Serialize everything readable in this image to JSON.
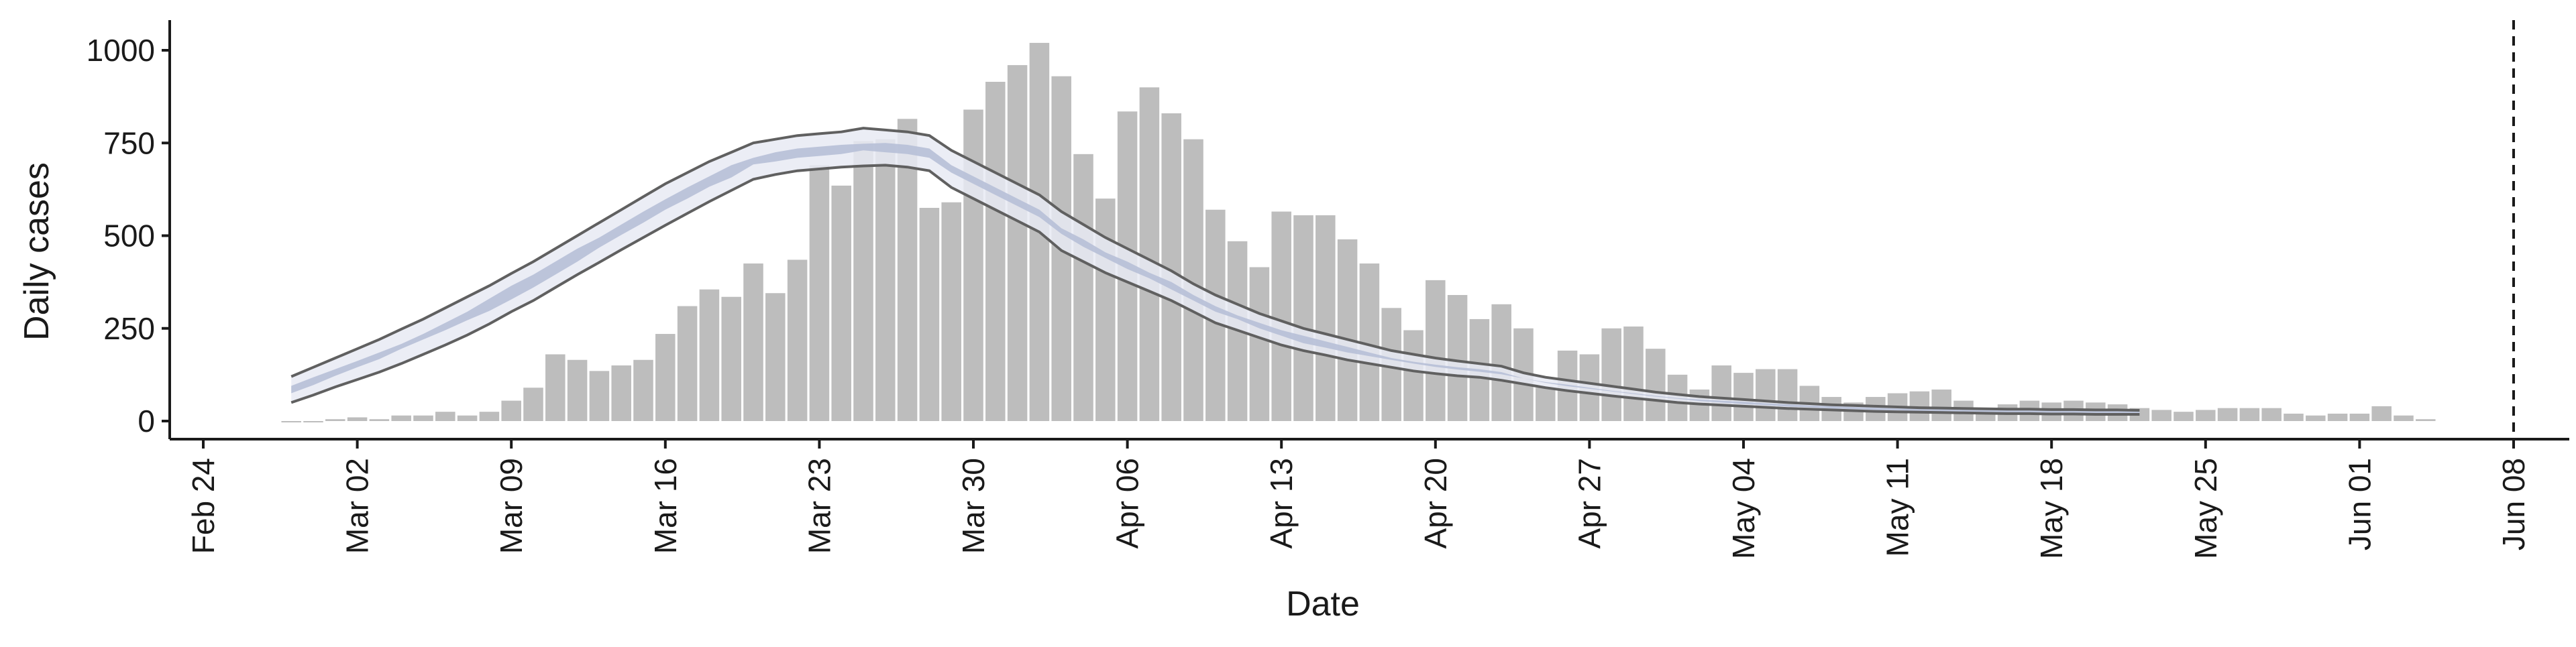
{
  "chart_data": {
    "type": "bar",
    "xlabel": "Date",
    "ylabel": "Daily cases",
    "ylim": [
      -25,
      1080
    ],
    "yticks": [
      0,
      250,
      500,
      750,
      1000
    ],
    "xtick_labels": [
      "Feb 24",
      "Mar 02",
      "Mar 09",
      "Mar 16",
      "Mar 23",
      "Mar 30",
      "Apr 06",
      "Apr 13",
      "Apr 20",
      "Apr 27",
      "May 04",
      "May 11",
      "May 18",
      "May 25",
      "Jun 01",
      "Jun 08"
    ],
    "dashed_line_label": "Jun 08",
    "grid": false,
    "bars": {
      "start_day": 4,
      "values": [
        0,
        0,
        5,
        10,
        5,
        15,
        15,
        25,
        15,
        25,
        55,
        90,
        180,
        165,
        135,
        150,
        165,
        235,
        310,
        355,
        335,
        425,
        345,
        435,
        690,
        635,
        755,
        760,
        815,
        575,
        590,
        840,
        915,
        960,
        1020,
        930,
        720,
        600,
        835,
        900,
        830,
        760,
        570,
        485,
        415,
        565,
        555,
        555,
        490,
        425,
        305,
        245,
        380,
        340,
        275,
        315,
        250,
        90,
        190,
        180,
        250,
        255,
        195,
        125,
        85,
        150,
        130,
        140,
        140,
        95,
        65,
        50,
        65,
        75,
        80,
        85,
        55,
        35,
        45,
        55,
        50,
        55,
        50,
        45,
        35,
        30,
        25,
        30,
        35,
        35,
        35,
        20,
        15,
        20,
        20,
        40,
        15,
        5
      ]
    },
    "estimate": {
      "start_day": 4,
      "inner_upper": [
        95,
        118,
        140,
        162,
        185,
        208,
        235,
        265,
        295,
        330,
        365,
        395,
        430,
        465,
        495,
        530,
        565,
        598,
        630,
        660,
        690,
        710,
        725,
        735,
        740,
        745,
        748,
        750,
        745,
        735,
        690,
        660,
        630,
        600,
        570,
        520,
        490,
        455,
        430,
        400,
        375,
        340,
        310,
        285,
        265,
        245,
        230,
        215,
        200,
        185,
        170,
        160,
        152,
        145,
        140,
        132,
        115,
        105,
        98,
        90,
        82,
        75,
        68,
        62,
        58,
        55,
        52,
        48,
        45,
        42,
        40,
        38,
        36,
        34,
        33,
        32,
        31,
        30,
        30,
        29,
        29,
        28,
        28,
        27,
        27
      ]
    },
    "ci_upper": {
      "start_day": 4,
      "values": [
        120,
        145,
        170,
        195,
        220,
        248,
        275,
        305,
        335,
        365,
        398,
        430,
        465,
        500,
        535,
        570,
        605,
        640,
        670,
        700,
        725,
        750,
        760,
        770,
        775,
        780,
        790,
        785,
        780,
        770,
        730,
        700,
        670,
        640,
        610,
        565,
        530,
        495,
        465,
        435,
        405,
        370,
        340,
        315,
        290,
        270,
        250,
        235,
        220,
        205,
        190,
        180,
        170,
        162,
        155,
        148,
        130,
        118,
        110,
        102,
        94,
        86,
        78,
        72,
        66,
        62,
        58,
        54,
        50,
        47,
        44,
        42,
        40,
        38,
        36,
        35,
        34,
        33,
        32,
        32,
        31,
        31,
        30,
        30,
        29
      ]
    },
    "ci_lower": {
      "start_day": 4,
      "values": [
        50,
        70,
        92,
        112,
        132,
        155,
        180,
        205,
        232,
        262,
        295,
        325,
        360,
        395,
        428,
        462,
        495,
        528,
        560,
        592,
        622,
        652,
        665,
        675,
        680,
        685,
        688,
        690,
        685,
        675,
        630,
        600,
        570,
        540,
        510,
        460,
        430,
        400,
        375,
        350,
        325,
        295,
        265,
        245,
        225,
        205,
        190,
        178,
        165,
        155,
        145,
        135,
        128,
        122,
        118,
        110,
        100,
        90,
        82,
        75,
        68,
        62,
        56,
        50,
        46,
        43,
        40,
        37,
        34,
        32,
        30,
        28,
        26,
        25,
        24,
        23,
        22,
        21,
        20,
        20,
        19,
        19,
        18,
        18,
        18
      ]
    },
    "colors": {
      "bar": "#bdbdbd",
      "band_outer": "#e8eaf3",
      "band_inner": "#b7bfd7",
      "ci_line": "#606060",
      "axis": "#1a1a1a"
    }
  }
}
